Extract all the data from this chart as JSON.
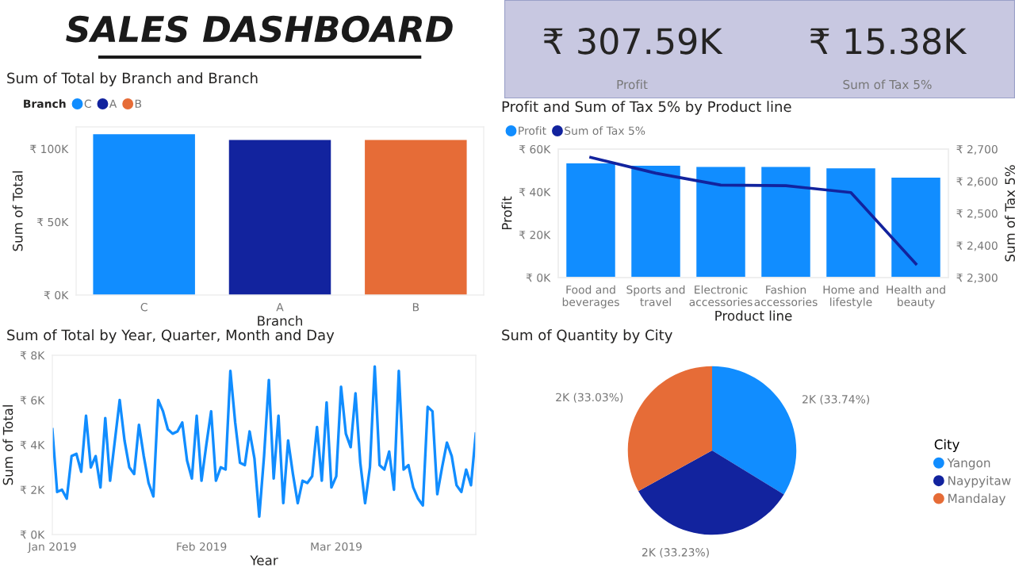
{
  "chart_data": [
    {
      "type": "other",
      "title": "SALES DASHBOARD"
    },
    {
      "type": "other",
      "annotations": [
        "₹ 307.59K",
        "Profit",
        "₹ 15.38K",
        "Sum of Tax 5%"
      ]
    },
    {
      "type": "bar",
      "title": "Sum of Total by Branch and Branch",
      "categories": [
        "C",
        "A",
        "B"
      ],
      "xlabel": "Branch",
      "ylabel": "Sum of Total",
      "legend_title": "Branch",
      "legend": "top left",
      "series": [
        {
          "name": "C",
          "color": "#118dff",
          "values": [
            110000,
            null,
            null
          ]
        },
        {
          "name": "A",
          "color": "#12239e",
          "values": [
            null,
            106000,
            null
          ]
        },
        {
          "name": "B",
          "color": "#e66c37",
          "values": [
            null,
            null,
            106000
          ]
        }
      ],
      "ylim": [
        0,
        115000
      ],
      "yticks": [
        {
          "value": 0,
          "label": "₹ 0K"
        },
        {
          "value": 50000,
          "label": "₹ 50K"
        },
        {
          "value": 100000,
          "label": "₹ 100K"
        }
      ]
    },
    {
      "type": "bar",
      "title": "Profit and Sum of Tax 5% by Product line",
      "categories": [
        "Food and beverages",
        "Sports and travel",
        "Electronic accessories",
        "Fashion accessories",
        "Home and lifestyle",
        "Health and beauty"
      ],
      "xlabel": "Product line",
      "ylabel": "Profit",
      "y2label": "Sum of Tax 5%",
      "legend": "top left",
      "series": [
        {
          "name": "Profit",
          "type": "bar",
          "color": "#118dff",
          "values": [
            53300,
            52200,
            51700,
            51700,
            51000,
            46700
          ]
        },
        {
          "name": "Sum of Tax 5%",
          "type": "line",
          "axis": "y2",
          "color": "#12239e",
          "values": [
            2674,
            2625,
            2588,
            2586,
            2565,
            2343
          ]
        }
      ],
      "ylim": [
        0,
        60000
      ],
      "yticks": [
        {
          "value": 0,
          "label": "₹ 0K"
        },
        {
          "value": 20000,
          "label": "₹ 20K"
        },
        {
          "value": 40000,
          "label": "₹ 40K"
        },
        {
          "value": 60000,
          "label": "₹ 60K"
        }
      ],
      "y2lim": [
        2300,
        2700
      ],
      "y2ticks": [
        {
          "value": 2300,
          "label": "₹ 2,300"
        },
        {
          "value": 2400,
          "label": "₹ 2,400"
        },
        {
          "value": 2500,
          "label": "₹ 2,500"
        },
        {
          "value": 2600,
          "label": "₹ 2,600"
        },
        {
          "value": 2700,
          "label": "₹ 2,700"
        }
      ]
    },
    {
      "type": "line",
      "title": "Sum of Total by Year, Quarter, Month and Day",
      "xlabel": "Year",
      "ylabel": "Sum of Total",
      "x": [
        "2019-01-01",
        "2019-01-02",
        "2019-01-03",
        "2019-01-04",
        "2019-01-05",
        "2019-01-06",
        "2019-01-07",
        "2019-01-08",
        "2019-01-09",
        "2019-01-10",
        "2019-01-11",
        "2019-01-12",
        "2019-01-13",
        "2019-01-14",
        "2019-01-15",
        "2019-01-16",
        "2019-01-17",
        "2019-01-18",
        "2019-01-19",
        "2019-01-20",
        "2019-01-21",
        "2019-01-22",
        "2019-01-23",
        "2019-01-24",
        "2019-01-25",
        "2019-01-26",
        "2019-01-27",
        "2019-01-28",
        "2019-01-29",
        "2019-01-30",
        "2019-01-31",
        "2019-02-01",
        "2019-02-02",
        "2019-02-03",
        "2019-02-04",
        "2019-02-05",
        "2019-02-06",
        "2019-02-07",
        "2019-02-08",
        "2019-02-09",
        "2019-02-10",
        "2019-02-11",
        "2019-02-12",
        "2019-02-13",
        "2019-02-14",
        "2019-02-15",
        "2019-02-16",
        "2019-02-17",
        "2019-02-18",
        "2019-02-19",
        "2019-02-20",
        "2019-02-21",
        "2019-02-22",
        "2019-02-23",
        "2019-02-24",
        "2019-02-25",
        "2019-02-26",
        "2019-02-27",
        "2019-02-28",
        "2019-03-01",
        "2019-03-02",
        "2019-03-03",
        "2019-03-04",
        "2019-03-05",
        "2019-03-06",
        "2019-03-07",
        "2019-03-08",
        "2019-03-09",
        "2019-03-10",
        "2019-03-11",
        "2019-03-12",
        "2019-03-13",
        "2019-03-14",
        "2019-03-15",
        "2019-03-16",
        "2019-03-17",
        "2019-03-18",
        "2019-03-19",
        "2019-03-20",
        "2019-03-21",
        "2019-03-22",
        "2019-03-23",
        "2019-03-24",
        "2019-03-25",
        "2019-03-26",
        "2019-03-27",
        "2019-03-28",
        "2019-03-29",
        "2019-03-30"
      ],
      "series": [
        {
          "color": "#118dff",
          "values": [
            4700,
            1900,
            2000,
            1600,
            3500,
            3600,
            2800,
            5300,
            3000,
            3500,
            2100,
            5200,
            2400,
            4200,
            6000,
            4200,
            3000,
            2700,
            4900,
            3500,
            2300,
            1700,
            6000,
            5500,
            4700,
            4500,
            4600,
            5000,
            3300,
            2500,
            5300,
            2400,
            4000,
            5500,
            2400,
            3000,
            2900,
            7300,
            5000,
            3200,
            3100,
            4600,
            3400,
            800,
            3500,
            6900,
            2500,
            5300,
            1400,
            4200,
            2700,
            1400,
            2400,
            2300,
            2600,
            4800,
            2400,
            5900,
            2100,
            2600,
            6600,
            4500,
            3900,
            6300,
            3200,
            1400,
            3000,
            7500,
            3100,
            2900,
            3700,
            2000,
            7300,
            2900,
            3100,
            2100,
            1600,
            1300,
            5700,
            5500,
            1800,
            3000,
            4100,
            3500,
            2200,
            1900,
            2900,
            2200,
            4500
          ]
        }
      ],
      "xlim": [
        "2019-01-01",
        "2019-03-30"
      ],
      "xticks": [
        {
          "value": "2019-01-01",
          "label": "Jan 2019"
        },
        {
          "value": "2019-02-01",
          "label": "Feb 2019"
        },
        {
          "value": "2019-03-01",
          "label": "Mar 2019"
        }
      ],
      "ylim": [
        0,
        8000
      ],
      "yticks": [
        {
          "value": 0,
          "label": "₹ 0K"
        },
        {
          "value": 2000,
          "label": "₹ 2K"
        },
        {
          "value": 4000,
          "label": "₹ 4K"
        },
        {
          "value": 6000,
          "label": "₹ 6K"
        },
        {
          "value": 8000,
          "label": "₹ 8K"
        }
      ]
    },
    {
      "type": "pie",
      "title": "Sum of Quantity by City",
      "legend_title": "City",
      "legend": "right",
      "categories": [
        "Yangon",
        "Naypyitaw",
        "Mandalay"
      ],
      "values": [
        33.74,
        33.23,
        33.03
      ],
      "colors": [
        "#118dff",
        "#12239e",
        "#e66c37"
      ],
      "value_labels": [
        "2K (33.74%)",
        "2K (33.23%)",
        "2K (33.03%)"
      ]
    }
  ]
}
